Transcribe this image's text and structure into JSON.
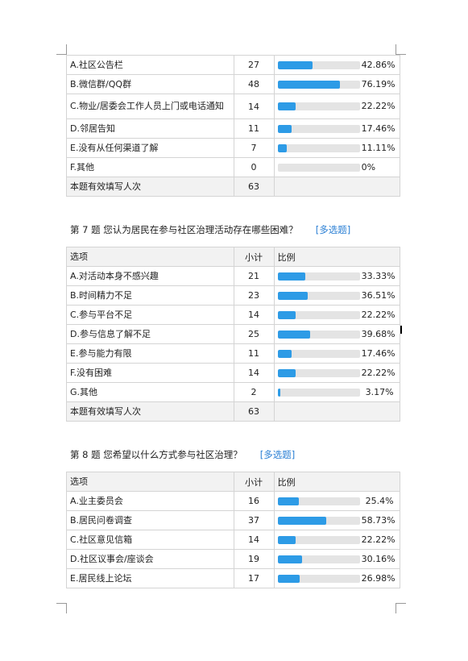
{
  "blocks": [
    {
      "title": null,
      "has_header": false,
      "rows": [
        {
          "label": "A.社区公告栏",
          "count": "27",
          "pct": "42.86%",
          "ratio": 0.4286
        },
        {
          "label": "B.微信群/QQ群",
          "count": "48",
          "pct": "76.19%",
          "ratio": 0.7619
        },
        {
          "label": "C.物业/居委会工作人员上门或电话通知",
          "count": "14",
          "pct": "22.22%",
          "ratio": 0.2222,
          "tall": true
        },
        {
          "label": "D.邻居告知",
          "count": "11",
          "pct": "17.46%",
          "ratio": 0.1746
        },
        {
          "label": "E.没有从任何渠道了解",
          "count": "7",
          "pct": "11.11%",
          "ratio": 0.1111
        },
        {
          "label": "F.其他",
          "count": "0",
          "pct": "0%",
          "ratio": 0
        }
      ],
      "total_label": "本题有效填写人次",
      "total": "63"
    },
    {
      "title": "第 7 题   您认为居民在参与社区治理活动存在哪些困难？",
      "tag": "[多选题]",
      "has_header": true,
      "rows": [
        {
          "label": "A.对活动本身不感兴趣",
          "count": "21",
          "pct": "33.33%",
          "ratio": 0.3333
        },
        {
          "label": "B.时间精力不足",
          "count": "23",
          "pct": "36.51%",
          "ratio": 0.3651
        },
        {
          "label": "C.参与平台不足",
          "count": "14",
          "pct": "22.22%",
          "ratio": 0.2222
        },
        {
          "label": "D.参与信息了解不足",
          "count": "25",
          "pct": "39.68%",
          "ratio": 0.3968
        },
        {
          "label": "E.参与能力有限",
          "count": "11",
          "pct": "17.46%",
          "ratio": 0.1746
        },
        {
          "label": "F.没有困难",
          "count": "14",
          "pct": "22.22%",
          "ratio": 0.2222
        },
        {
          "label": "G.其他",
          "count": "2",
          "pct": "3.17%",
          "ratio": 0.0317
        }
      ],
      "total_label": "本题有效填写人次",
      "total": "63"
    },
    {
      "title": "第 8 题   您希望以什么方式参与社区治理？",
      "tag": "[多选题]",
      "has_header": true,
      "rows": [
        {
          "label": "A.业主委员会",
          "count": "16",
          "pct": "25.4%",
          "ratio": 0.254
        },
        {
          "label": "B.居民问卷调查",
          "count": "37",
          "pct": "58.73%",
          "ratio": 0.5873
        },
        {
          "label": "C.社区意见信箱",
          "count": "14",
          "pct": "22.22%",
          "ratio": 0.2222
        },
        {
          "label": "D.社区议事会/座谈会",
          "count": "19",
          "pct": "30.16%",
          "ratio": 0.3016
        },
        {
          "label": "E.居民线上论坛",
          "count": "17",
          "pct": "26.98%",
          "ratio": 0.2698
        }
      ],
      "total_label": null,
      "total": null
    }
  ],
  "headers": {
    "option": "选项",
    "count": "小计",
    "ratio": "比例"
  },
  "colors": {
    "bar_fill": "#2d9be6",
    "bar_track": "#e4e4e4",
    "tag": "#2a7fd4",
    "header_bg": "#f2f2f2"
  }
}
